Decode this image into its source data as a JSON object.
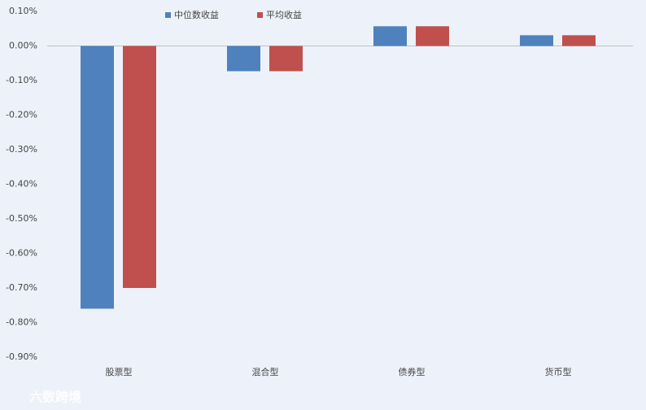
{
  "chart_data": {
    "type": "bar",
    "categories": [
      "股票型",
      "混合型",
      "债券型",
      "货币型"
    ],
    "series": [
      {
        "name": "中位数收益",
        "color": "#4f81bd",
        "values": [
          -0.76,
          -0.073,
          0.057,
          0.031
        ]
      },
      {
        "name": "平均收益",
        "color": "#c0504d",
        "values": [
          -0.7,
          -0.073,
          0.057,
          0.031
        ]
      }
    ],
    "ylim": [
      -0.9,
      0.1
    ],
    "yticks": [
      {
        "value": 0.1,
        "label": "0.10%"
      },
      {
        "value": 0,
        "label": "0.00%"
      },
      {
        "value": -0.1,
        "label": "-0.10%"
      },
      {
        "value": -0.2,
        "label": "-0.20%"
      },
      {
        "value": -0.3,
        "label": "-0.30%"
      },
      {
        "value": -0.4,
        "label": "-0.40%"
      },
      {
        "value": -0.5,
        "label": "-0.50%"
      },
      {
        "value": -0.6,
        "label": "-0.60%"
      },
      {
        "value": -0.7,
        "label": "-0.70%"
      },
      {
        "value": -0.8,
        "label": "-0.80%"
      },
      {
        "value": -0.9,
        "label": "-0.90%"
      }
    ],
    "legend": "top",
    "watermark": "六数跨境"
  }
}
